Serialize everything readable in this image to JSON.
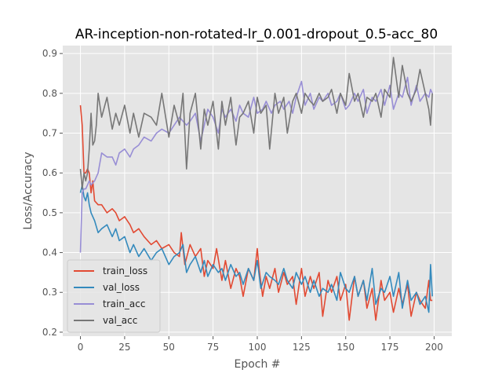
{
  "chart_data": {
    "type": "line",
    "title": "AR-inception-non-rotated-lr_0.001-dropout_0.5-acc_80",
    "xlabel": "Epoch #",
    "ylabel": "Loss/Accuracy",
    "xlim": [
      -10,
      210
    ],
    "ylim": [
      0.19,
      0.92
    ],
    "xticks": [
      0,
      25,
      50,
      75,
      100,
      125,
      150,
      175,
      200
    ],
    "yticks": [
      0.2,
      0.3,
      0.4,
      0.5,
      0.6,
      0.7,
      0.8,
      0.9
    ],
    "grid": true,
    "legend_position": "lower left",
    "style": {
      "background": "#e5e5e5",
      "grid_color": "#ffffff",
      "text_color": "#555555",
      "title_color": "#000000"
    },
    "series": [
      {
        "name": "train_loss",
        "color": "#e24a33",
        "x": [
          0,
          1,
          2,
          3,
          4,
          5,
          6,
          7,
          8,
          10,
          12,
          15,
          18,
          20,
          22,
          25,
          28,
          30,
          33,
          36,
          40,
          43,
          46,
          50,
          53,
          56,
          57,
          59,
          62,
          65,
          68,
          70,
          72,
          75,
          77,
          80,
          82,
          85,
          88,
          90,
          92,
          95,
          98,
          100,
          101,
          103,
          105,
          107,
          110,
          112,
          115,
          117,
          120,
          122,
          125,
          127,
          130,
          132,
          135,
          137,
          140,
          142,
          145,
          147,
          150,
          152,
          155,
          157,
          160,
          162,
          165,
          167,
          170,
          172,
          175,
          177,
          180,
          182,
          185,
          187,
          190,
          192,
          195,
          197,
          198,
          199
        ],
        "values": [
          0.77,
          0.72,
          0.6,
          0.6,
          0.61,
          0.6,
          0.55,
          0.58,
          0.53,
          0.52,
          0.52,
          0.5,
          0.51,
          0.5,
          0.48,
          0.49,
          0.47,
          0.45,
          0.46,
          0.44,
          0.42,
          0.43,
          0.41,
          0.42,
          0.4,
          0.39,
          0.45,
          0.37,
          0.42,
          0.39,
          0.41,
          0.34,
          0.38,
          0.36,
          0.41,
          0.33,
          0.38,
          0.31,
          0.36,
          0.34,
          0.29,
          0.36,
          0.33,
          0.41,
          0.36,
          0.29,
          0.34,
          0.31,
          0.36,
          0.3,
          0.35,
          0.32,
          0.34,
          0.27,
          0.36,
          0.29,
          0.34,
          0.31,
          0.35,
          0.24,
          0.33,
          0.3,
          0.34,
          0.28,
          0.32,
          0.23,
          0.34,
          0.29,
          0.33,
          0.26,
          0.31,
          0.23,
          0.33,
          0.28,
          0.3,
          0.25,
          0.31,
          0.27,
          0.32,
          0.24,
          0.3,
          0.28,
          0.26,
          0.33,
          0.28,
          0.28
        ]
      },
      {
        "name": "val_loss",
        "color": "#348abd",
        "x": [
          0,
          1,
          2,
          3,
          4,
          5,
          6,
          8,
          10,
          12,
          15,
          18,
          20,
          22,
          25,
          28,
          30,
          33,
          36,
          40,
          43,
          46,
          50,
          53,
          56,
          58,
          60,
          62,
          65,
          68,
          70,
          72,
          75,
          78,
          80,
          82,
          85,
          88,
          90,
          92,
          95,
          98,
          100,
          102,
          105,
          107,
          110,
          112,
          115,
          117,
          120,
          122,
          125,
          127,
          130,
          132,
          135,
          137,
          140,
          142,
          145,
          147,
          150,
          152,
          155,
          157,
          160,
          162,
          165,
          167,
          170,
          172,
          175,
          177,
          180,
          182,
          185,
          187,
          190,
          192,
          195,
          197,
          198,
          199
        ],
        "values": [
          0.55,
          0.57,
          0.54,
          0.53,
          0.55,
          0.52,
          0.5,
          0.48,
          0.45,
          0.46,
          0.47,
          0.44,
          0.46,
          0.43,
          0.44,
          0.4,
          0.42,
          0.39,
          0.41,
          0.38,
          0.4,
          0.41,
          0.37,
          0.39,
          0.4,
          0.42,
          0.35,
          0.37,
          0.39,
          0.35,
          0.38,
          0.34,
          0.37,
          0.35,
          0.36,
          0.33,
          0.37,
          0.34,
          0.35,
          0.32,
          0.36,
          0.33,
          0.38,
          0.31,
          0.35,
          0.34,
          0.33,
          0.32,
          0.36,
          0.33,
          0.31,
          0.35,
          0.32,
          0.34,
          0.3,
          0.33,
          0.29,
          0.31,
          0.3,
          0.32,
          0.28,
          0.35,
          0.31,
          0.3,
          0.34,
          0.29,
          0.33,
          0.28,
          0.36,
          0.27,
          0.31,
          0.3,
          0.34,
          0.29,
          0.35,
          0.26,
          0.33,
          0.28,
          0.3,
          0.27,
          0.29,
          0.25,
          0.37,
          0.29
        ]
      },
      {
        "name": "train_acc",
        "color": "#988ed5",
        "x": [
          0,
          1,
          2,
          3,
          4,
          5,
          6,
          8,
          10,
          12,
          15,
          18,
          20,
          22,
          25,
          28,
          30,
          33,
          36,
          40,
          43,
          46,
          50,
          53,
          56,
          60,
          62,
          65,
          68,
          70,
          72,
          75,
          78,
          80,
          82,
          85,
          88,
          90,
          92,
          95,
          98,
          100,
          103,
          105,
          108,
          110,
          113,
          115,
          118,
          120,
          122,
          125,
          127,
          130,
          132,
          135,
          137,
          140,
          142,
          145,
          147,
          150,
          152,
          155,
          157,
          160,
          162,
          165,
          167,
          170,
          172,
          175,
          177,
          180,
          182,
          185,
          187,
          190,
          192,
          195,
          197,
          198,
          199
        ],
        "values": [
          0.4,
          0.55,
          0.56,
          0.56,
          0.57,
          0.58,
          0.57,
          0.58,
          0.6,
          0.65,
          0.64,
          0.64,
          0.62,
          0.65,
          0.66,
          0.64,
          0.66,
          0.67,
          0.69,
          0.68,
          0.7,
          0.71,
          0.7,
          0.72,
          0.74,
          0.72,
          0.73,
          0.75,
          0.68,
          0.72,
          0.76,
          0.74,
          0.7,
          0.76,
          0.74,
          0.76,
          0.73,
          0.77,
          0.75,
          0.74,
          0.79,
          0.75,
          0.76,
          0.78,
          0.75,
          0.77,
          0.78,
          0.76,
          0.78,
          0.75,
          0.79,
          0.83,
          0.77,
          0.8,
          0.76,
          0.79,
          0.78,
          0.8,
          0.77,
          0.78,
          0.8,
          0.76,
          0.77,
          0.8,
          0.78,
          0.81,
          0.75,
          0.79,
          0.78,
          0.81,
          0.77,
          0.82,
          0.76,
          0.8,
          0.79,
          0.84,
          0.77,
          0.82,
          0.78,
          0.8,
          0.79,
          0.81,
          0.8
        ]
      },
      {
        "name": "val_acc",
        "color": "#777777",
        "x": [
          0,
          1,
          2,
          3,
          4,
          5,
          6,
          7,
          8,
          9,
          10,
          12,
          15,
          18,
          20,
          22,
          25,
          28,
          30,
          33,
          36,
          40,
          43,
          46,
          50,
          53,
          56,
          58,
          60,
          62,
          65,
          68,
          70,
          72,
          75,
          78,
          80,
          82,
          85,
          88,
          90,
          92,
          95,
          98,
          100,
          102,
          105,
          107,
          110,
          112,
          115,
          117,
          120,
          122,
          125,
          127,
          130,
          132,
          135,
          137,
          140,
          142,
          145,
          147,
          150,
          152,
          155,
          157,
          160,
          162,
          165,
          167,
          170,
          172,
          175,
          177,
          180,
          182,
          185,
          187,
          190,
          192,
          195,
          197,
          198,
          199
        ],
        "values": [
          0.61,
          0.56,
          0.6,
          0.58,
          0.6,
          0.66,
          0.75,
          0.67,
          0.68,
          0.72,
          0.8,
          0.74,
          0.79,
          0.71,
          0.75,
          0.72,
          0.77,
          0.7,
          0.75,
          0.69,
          0.75,
          0.74,
          0.72,
          0.8,
          0.69,
          0.77,
          0.72,
          0.8,
          0.61,
          0.75,
          0.8,
          0.66,
          0.76,
          0.72,
          0.78,
          0.66,
          0.78,
          0.72,
          0.79,
          0.67,
          0.74,
          0.75,
          0.78,
          0.7,
          0.79,
          0.75,
          0.77,
          0.66,
          0.8,
          0.75,
          0.79,
          0.7,
          0.78,
          0.8,
          0.75,
          0.8,
          0.78,
          0.77,
          0.8,
          0.78,
          0.79,
          0.81,
          0.75,
          0.8,
          0.77,
          0.85,
          0.78,
          0.8,
          0.74,
          0.79,
          0.78,
          0.8,
          0.74,
          0.81,
          0.79,
          0.89,
          0.79,
          0.87,
          0.8,
          0.78,
          0.81,
          0.86,
          0.8,
          0.76,
          0.72,
          0.8
        ]
      }
    ]
  }
}
